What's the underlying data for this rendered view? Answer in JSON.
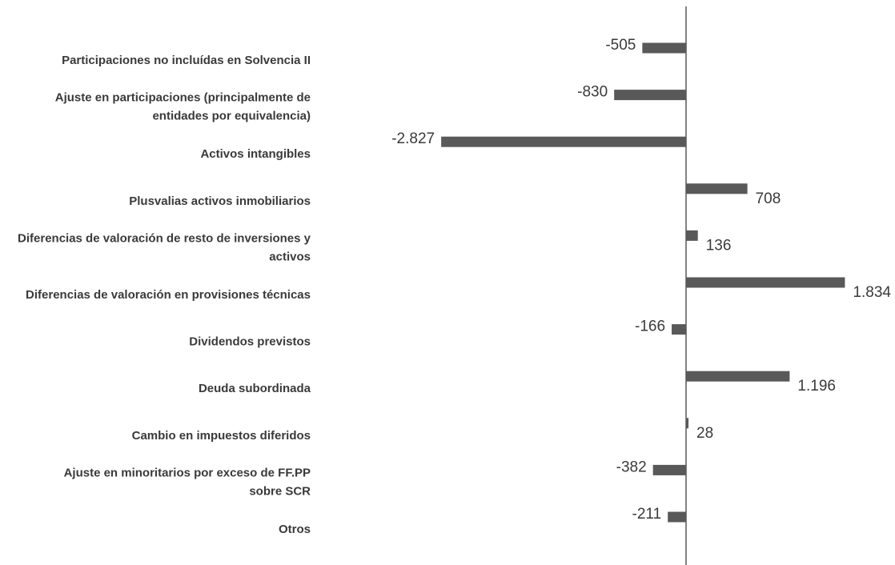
{
  "chart_data": {
    "type": "bar",
    "orientation": "horizontal",
    "categories": [
      [
        "Participaciones no incluídas en Solvencia II"
      ],
      [
        "Ajuste en participaciones (principalmente de",
        "entidades por equivalencia)"
      ],
      [
        "Activos intangibles"
      ],
      [
        "Plusvalias activos inmobiliarios"
      ],
      [
        "Diferencias de valoración de resto de inversiones y",
        "activos"
      ],
      [
        "Diferencias de valoración en provisiones técnicas"
      ],
      [
        "Dividendos previstos"
      ],
      [
        "Deuda subordinada"
      ],
      [
        "Cambio en impuestos diferidos"
      ],
      [
        "Ajuste en minoritarios por exceso de FF.PP",
        "sobre SCR"
      ],
      [
        "Otros"
      ]
    ],
    "values": [
      -505,
      -830,
      -2827,
      708,
      136,
      1834,
      -166,
      1196,
      28,
      -382,
      -211
    ],
    "value_labels": [
      "-505",
      "-830",
      "-2.827",
      "708",
      "136",
      "1.834",
      "-166",
      "1.196",
      "28",
      "-382",
      "-211"
    ],
    "bar_color": "#595959",
    "axis_color": "#595959",
    "title": "",
    "xlabel": "",
    "ylabel": "",
    "grid": false,
    "legend": "none"
  }
}
